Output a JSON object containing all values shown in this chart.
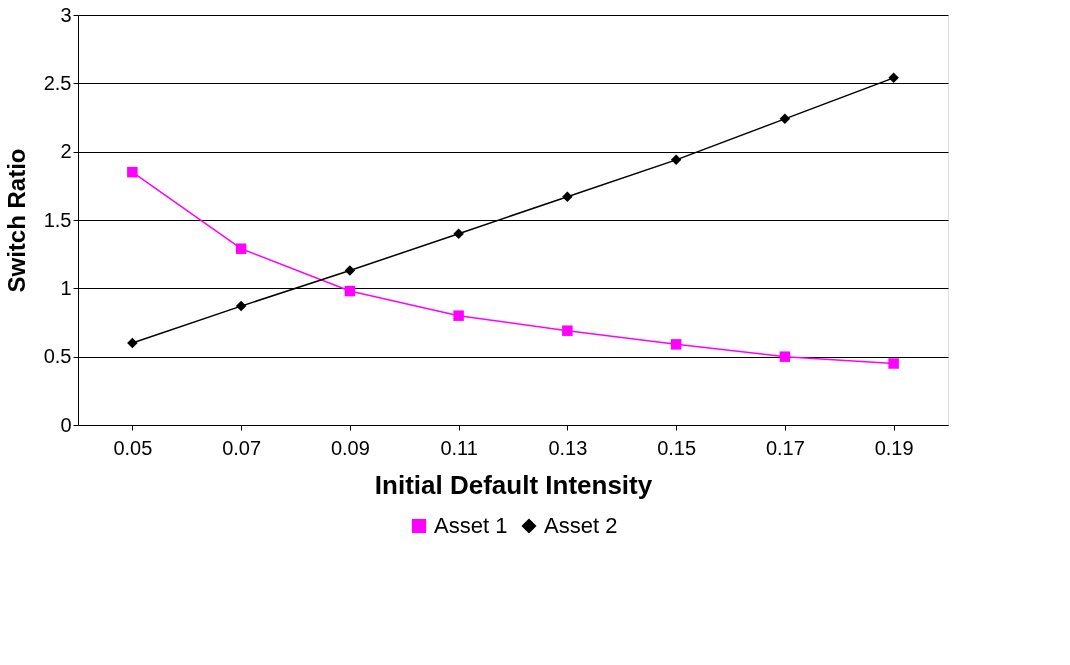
{
  "chart_data": {
    "type": "line",
    "xlabel": "Initial Default Intensity",
    "ylabel": "Switch Ratio",
    "categories": [
      "0.05",
      "0.07",
      "0.09",
      "0.11",
      "0.13",
      "0.15",
      "0.17",
      "0.19"
    ],
    "series": [
      {
        "name": "Asset 1",
        "color": "#ff00ff",
        "marker": "square",
        "values": [
          1.85,
          1.29,
          0.98,
          0.8,
          0.69,
          0.59,
          0.5,
          0.45
        ]
      },
      {
        "name": "Asset 2",
        "color": "#000000",
        "marker": "diamond",
        "values": [
          0.6,
          0.87,
          1.13,
          1.4,
          1.67,
          1.94,
          2.24,
          2.54
        ]
      }
    ],
    "ylim": [
      0,
      3
    ],
    "yticks": [
      0,
      0.5,
      1,
      1.5,
      2,
      2.5,
      3
    ],
    "grid": "y",
    "legend": "bottom",
    "line_style": "solid"
  }
}
